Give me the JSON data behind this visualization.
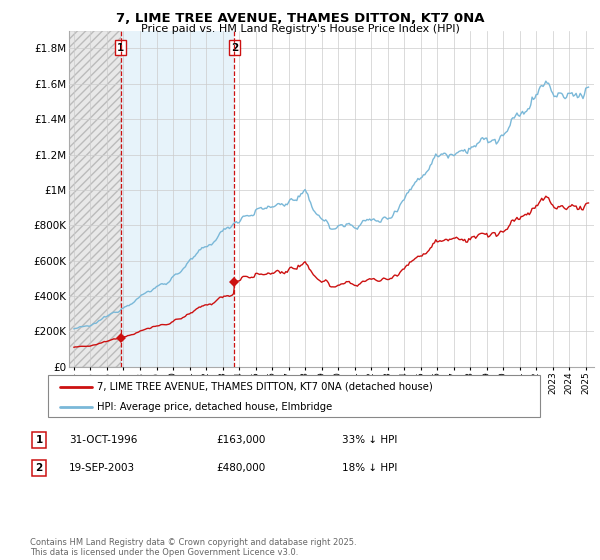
{
  "title": "7, LIME TREE AVENUE, THAMES DITTON, KT7 0NA",
  "subtitle": "Price paid vs. HM Land Registry's House Price Index (HPI)",
  "hpi_color": "#7ab8d8",
  "price_color": "#cc1111",
  "vline_color": "#cc1111",
  "grid_color": "#cccccc",
  "purchase1_date": 1996.833,
  "purchase1_price": 163000,
  "purchase2_date": 2003.72,
  "purchase2_price": 480000,
  "ylim": [
    0,
    1900000
  ],
  "yticks": [
    0,
    200000,
    400000,
    600000,
    800000,
    1000000,
    1200000,
    1400000,
    1600000,
    1800000
  ],
  "ytick_labels": [
    "£0",
    "£200K",
    "£400K",
    "£600K",
    "£800K",
    "£1M",
    "£1.2M",
    "£1.4M",
    "£1.6M",
    "£1.8M"
  ],
  "xlim": [
    1993.7,
    2025.5
  ],
  "xticks": [
    1994,
    1995,
    1996,
    1997,
    1998,
    1999,
    2000,
    2001,
    2002,
    2003,
    2004,
    2005,
    2006,
    2007,
    2008,
    2009,
    2010,
    2011,
    2012,
    2013,
    2014,
    2015,
    2016,
    2017,
    2018,
    2019,
    2020,
    2021,
    2022,
    2023,
    2024,
    2025
  ],
  "legend_entries": [
    "7, LIME TREE AVENUE, THAMES DITTON, KT7 0NA (detached house)",
    "HPI: Average price, detached house, Elmbridge"
  ],
  "table_rows": [
    {
      "num": "1",
      "date": "31-OCT-1996",
      "price": "£163,000",
      "hpi": "33% ↓ HPI"
    },
    {
      "num": "2",
      "date": "19-SEP-2003",
      "price": "£480,000",
      "hpi": "18% ↓ HPI"
    }
  ],
  "footnote": "Contains HM Land Registry data © Crown copyright and database right 2025.\nThis data is licensed under the Open Government Licence v3.0."
}
